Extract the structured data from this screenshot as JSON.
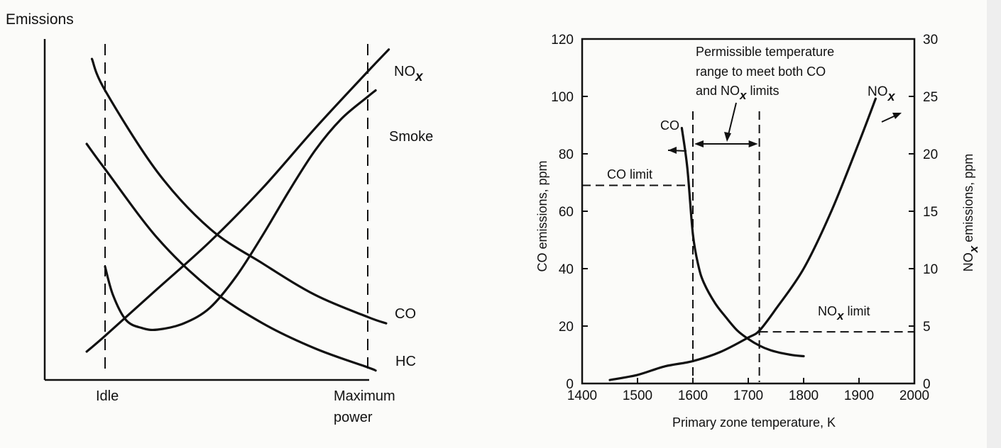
{
  "chart_data": [
    {
      "type": "line",
      "ylabel": "Emissions",
      "x_endpoints": [
        "Idle",
        "Maximum power"
      ],
      "xticks": [
        {
          "lines": [
            "Idle"
          ],
          "x": 0.0
        },
        {
          "lines": [
            "Maximum",
            "power"
          ],
          "x": 1.0
        }
      ],
      "xlim": [
        -0.2,
        1.1
      ],
      "ylim": [
        0,
        1
      ],
      "reference_lines": [
        {
          "type": "vertical",
          "x": 0.0,
          "style": "dashed"
        },
        {
          "type": "vertical",
          "x": 1.0,
          "style": "dashed"
        }
      ],
      "series": [
        {
          "name": "NO",
          "subscript": "x",
          "x": [
            -0.07,
            0.0,
            0.2,
            0.4,
            0.6,
            0.8,
            1.0,
            1.08
          ],
          "y": [
            0.09,
            0.14,
            0.29,
            0.44,
            0.61,
            0.8,
            0.98,
            1.05
          ]
        },
        {
          "name": "Smoke",
          "x": [
            0.0,
            0.03,
            0.08,
            0.14,
            0.2,
            0.3,
            0.4,
            0.5,
            0.6,
            0.7,
            0.8,
            0.9,
            1.0,
            1.03
          ],
          "y": [
            0.36,
            0.27,
            0.19,
            0.165,
            0.16,
            0.18,
            0.23,
            0.33,
            0.46,
            0.6,
            0.73,
            0.83,
            0.9,
            0.92
          ]
        },
        {
          "name": "CO",
          "x": [
            -0.05,
            0.0,
            0.2,
            0.4,
            0.6,
            0.8,
            1.0,
            1.07
          ],
          "y": [
            1.02,
            0.92,
            0.66,
            0.48,
            0.37,
            0.27,
            0.2,
            0.18
          ]
        },
        {
          "name": "HC",
          "x": [
            -0.07,
            0.0,
            0.2,
            0.4,
            0.6,
            0.8,
            1.0,
            1.03
          ],
          "y": [
            0.75,
            0.67,
            0.45,
            0.29,
            0.18,
            0.1,
            0.04,
            0.03
          ]
        }
      ]
    },
    {
      "type": "line",
      "xlabel": "Primary zone temperature, K",
      "ylabel": "CO emissions, ppm",
      "ylabel2": {
        "text": "NO",
        "subscript": "x",
        "rest": " emissions, ppm"
      },
      "xlim": [
        1400,
        2000
      ],
      "ylim": [
        0,
        120
      ],
      "ylim2": [
        0,
        30
      ],
      "xticks": [
        1400,
        1500,
        1600,
        1700,
        1800,
        1900,
        2000
      ],
      "yticks": [
        0,
        20,
        40,
        60,
        80,
        100,
        120
      ],
      "yticks2": [
        0,
        5,
        10,
        15,
        20,
        25,
        30
      ],
      "series": [
        {
          "name": "CO",
          "axis": "left",
          "x": [
            1580,
            1590,
            1600,
            1610,
            1620,
            1640,
            1660,
            1680,
            1700,
            1720,
            1740,
            1760,
            1780,
            1800
          ],
          "y": [
            89,
            75,
            52,
            41,
            35,
            28,
            23,
            18.5,
            15.5,
            13.2,
            11.6,
            10.6,
            9.9,
            9.5
          ]
        },
        {
          "name": "NO",
          "subscript": "x",
          "axis": "right",
          "x": [
            1450,
            1500,
            1550,
            1600,
            1650,
            1700,
            1720,
            1750,
            1800,
            1850,
            1900,
            1930
          ],
          "y": [
            0.3,
            0.75,
            1.5,
            1.95,
            2.75,
            4.0,
            4.6,
            6.5,
            10.0,
            15.0,
            21.0,
            24.8
          ]
        }
      ],
      "annotations": {
        "range_text": [
          {
            "text": "Permissible temperature"
          },
          {
            "text": "range to meet both CO"
          },
          {
            "text": "and NO",
            "subscript": "x",
            "rest": " limits"
          }
        ],
        "co_limit": {
          "text": "CO limit",
          "value": 69
        },
        "nox_limit": {
          "text": "NO",
          "subscript": "x",
          "rest": " limit",
          "value": 4.5
        },
        "range_bounds": [
          1600,
          1720
        ],
        "series_labels": {
          "co": "CO",
          "nox": "NO",
          "nox_sub": "x"
        }
      }
    }
  ]
}
